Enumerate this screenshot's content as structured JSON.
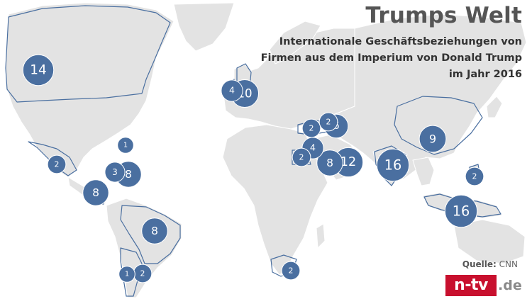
{
  "title": "Trumps Welt",
  "subtitle": [
    "Internationale Geschäftsbeziehungen von",
    "Firmen aus dem Imperium von Donald Trump",
    "im Jahr 2016"
  ],
  "source": {
    "label": "Quelle:",
    "name": "CNN"
  },
  "logo": {
    "brand": "n-tv",
    "suffix": ".de"
  },
  "colors": {
    "bubble": "#4a6fa0",
    "land": "#e3e3e3",
    "ocean": "#ffffff",
    "border": "#ffffff",
    "highlight_border": "#4a6fa0"
  },
  "bubbles": [
    {
      "region": "Kanada",
      "value": 14
    },
    {
      "region": "Mexiko",
      "value": 2
    },
    {
      "region": "Bermuda",
      "value": 1
    },
    {
      "region": "Karibik",
      "value": 3
    },
    {
      "region": "Karibik-Ost",
      "value": 8
    },
    {
      "region": "Panama",
      "value": 8
    },
    {
      "region": "Brasilien",
      "value": 8
    },
    {
      "region": "Argentinien",
      "value": 1
    },
    {
      "region": "Uruguay",
      "value": 2
    },
    {
      "region": "Irland",
      "value": 4
    },
    {
      "region": "Großbritannien",
      "value": 10
    },
    {
      "region": "Türkei",
      "value": 2
    },
    {
      "region": "Georgien",
      "value": 2
    },
    {
      "region": "Aserbaidschan",
      "value": 6
    },
    {
      "region": "Israel",
      "value": 4
    },
    {
      "region": "Ägypten",
      "value": 2
    },
    {
      "region": "Saudi-Arabien",
      "value": 8
    },
    {
      "region": "VAE",
      "value": 12
    },
    {
      "region": "Indien",
      "value": 16
    },
    {
      "region": "China",
      "value": 9
    },
    {
      "region": "Philippinen",
      "value": 2
    },
    {
      "region": "Indonesien",
      "value": 16
    },
    {
      "region": "Südafrika",
      "value": 2
    }
  ]
}
